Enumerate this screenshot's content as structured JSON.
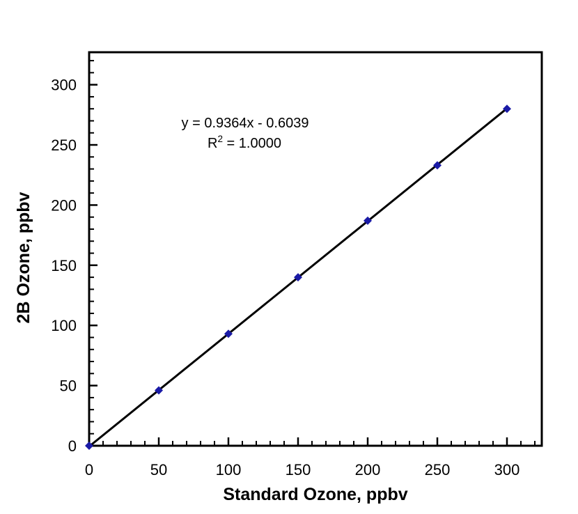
{
  "figure": {
    "background": "#ffffff",
    "text_color": "#000000"
  },
  "chart_data": {
    "type": "scatter",
    "title": "",
    "xlabel": "Standard Ozone, ppbv",
    "ylabel": "2B Ozone, ppbv",
    "x": [
      0,
      50,
      100,
      150,
      200,
      250,
      300
    ],
    "y": [
      0,
      46,
      93,
      140,
      187,
      233,
      280
    ],
    "trendline": {
      "slope": 0.9364,
      "intercept": -0.6039,
      "equation": "y = 0.9364x - 0.6039",
      "r_squared_text": "R2 = 1.0000"
    },
    "annotation": {
      "equation": "y = 0.9364x - 0.6039",
      "r_base": "R",
      "r_exponent": "2",
      "r_value": " = 1.0000"
    },
    "xlim": [
      0,
      325
    ],
    "ylim": [
      0,
      327
    ],
    "x_ticks": [
      0,
      50,
      100,
      150,
      200,
      250,
      300
    ],
    "y_ticks": [
      0,
      50,
      100,
      150,
      200,
      250,
      300
    ],
    "major_tick_step": 50,
    "minor_tick_step": 10,
    "grid": false,
    "legend": "none",
    "axis_color": "#000000",
    "text_color": "#000000",
    "line_color": "#000000",
    "marker": {
      "shape": "diamond",
      "color": "#1a1aa6"
    }
  }
}
